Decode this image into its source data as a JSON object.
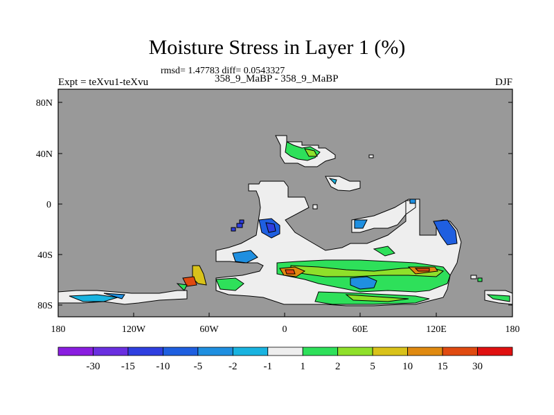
{
  "title": "Moisture Stress in Layer 1 (%)",
  "stats": "rmsd= 1.47783 diff= 0.0543327",
  "left_string": "Expt = teXvu1-teXvu",
  "center_string": "358_9_MaBP - 358_9_MaBP",
  "right_string": "DJF",
  "colors": {
    "background_mask": "#999999",
    "land_near_zero": "#eeeeee",
    "coast": "#000000"
  },
  "map_data": {
    "type": "filled-contour-map",
    "projection": "cylindrical equidistant",
    "lon_range": [
      -180,
      180
    ],
    "lat_range": [
      -90,
      90
    ],
    "lon_ticks": [
      "180",
      "120W",
      "60W",
      "0",
      "60E",
      "120E",
      "180"
    ],
    "lat_ticks": [
      "80N",
      "40N",
      "0",
      "40S",
      "80S"
    ]
  },
  "colorbar": {
    "labels": [
      "-30",
      "-15",
      "-10",
      "-5",
      "-2",
      "-1",
      "1",
      "2",
      "5",
      "10",
      "15",
      "30"
    ],
    "colors": [
      "#8a1ee0",
      "#6a2fe0",
      "#2f3fe0",
      "#1f5fe0",
      "#1f8fe0",
      "#19b3e0",
      "#eeeeee",
      "#2ee05a",
      "#8fe02a",
      "#d9c21a",
      "#e08a10",
      "#e04a10",
      "#e01010"
    ]
  }
}
